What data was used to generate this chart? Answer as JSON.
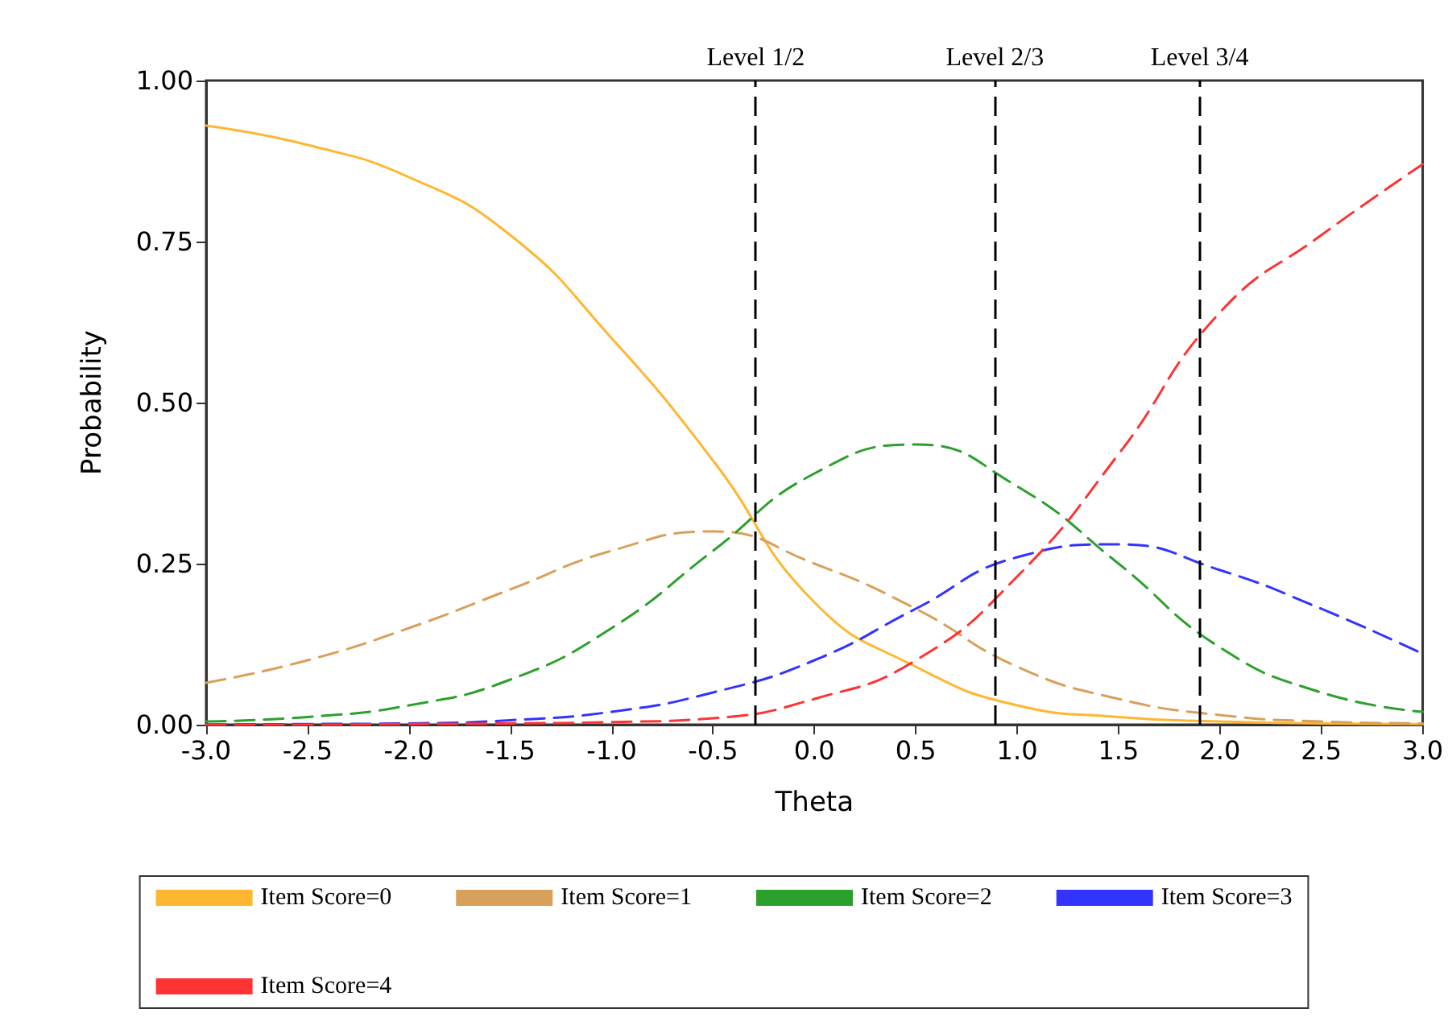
{
  "chart_data": {
    "type": "line",
    "xlabel": "Theta",
    "ylabel": "Probability",
    "xlim": [
      -3,
      3
    ],
    "ylim": [
      0,
      1
    ],
    "xticks": [
      {
        "value": -3,
        "label": "-3.0"
      },
      {
        "value": -2.5,
        "label": "-2.5"
      },
      {
        "value": -2,
        "label": "-2.0"
      },
      {
        "value": -1.5,
        "label": "-1.5"
      },
      {
        "value": -1,
        "label": "-1.0"
      },
      {
        "value": -0.5,
        "label": "-0.5"
      },
      {
        "value": 0,
        "label": "0.0"
      },
      {
        "value": 0.5,
        "label": "0.5"
      },
      {
        "value": 1,
        "label": "1.0"
      },
      {
        "value": 1.5,
        "label": "1.5"
      },
      {
        "value": 2,
        "label": "2.0"
      },
      {
        "value": 2.5,
        "label": "2.5"
      },
      {
        "value": 3,
        "label": "3.0"
      }
    ],
    "yticks": [
      {
        "value": 0,
        "label": "0.00"
      },
      {
        "value": 0.25,
        "label": "0.25"
      },
      {
        "value": 0.5,
        "label": "0.50"
      },
      {
        "value": 0.75,
        "label": "0.75"
      },
      {
        "value": 1,
        "label": "1.00"
      }
    ],
    "x": [
      -3,
      -2.5,
      -2,
      -1.5,
      -1,
      -0.5,
      0,
      0.5,
      1,
      1.5,
      2,
      2.5,
      3
    ],
    "series": [
      {
        "name": "Item Score=0",
        "color": "#ffb732",
        "line_style": "solid",
        "values": [
          0.93,
          0.9,
          0.85,
          0.76,
          0.6,
          0.41,
          0.19,
          0.09,
          0.03,
          0.012,
          0.005,
          0.002,
          0.001
        ]
      },
      {
        "name": "Item Score=1",
        "color": "#d9a05b",
        "line_style": "dashed",
        "values": [
          0.065,
          0.1,
          0.15,
          0.21,
          0.27,
          0.3,
          0.25,
          0.18,
          0.09,
          0.04,
          0.015,
          0.005,
          0.002
        ]
      },
      {
        "name": "Item Score=2",
        "color": "#2ca02c",
        "line_style": "dashed",
        "values": [
          0.005,
          0.012,
          0.03,
          0.07,
          0.15,
          0.27,
          0.39,
          0.435,
          0.37,
          0.25,
          0.12,
          0.05,
          0.02
        ]
      },
      {
        "name": "Item Score=3",
        "color": "#3333ff",
        "line_style": "dashed",
        "values": [
          0,
          0.001,
          0.002,
          0.007,
          0.02,
          0.05,
          0.1,
          0.18,
          0.26,
          0.28,
          0.24,
          0.18,
          0.11
        ]
      },
      {
        "name": "Item Score=4",
        "color": "#ff3333",
        "line_style": "dashed",
        "values": [
          0,
          0,
          0.001,
          0.002,
          0.004,
          0.01,
          0.04,
          0.1,
          0.23,
          0.42,
          0.64,
          0.76,
          0.87
        ]
      }
    ],
    "ref_lines": [
      {
        "axis": "x",
        "value": -0.29,
        "label": "Level 1/2",
        "color": "#000000",
        "line_style": "dashed"
      },
      {
        "axis": "x",
        "value": 0.89,
        "label": "Level 2/3",
        "color": "#000000",
        "line_style": "dashed"
      },
      {
        "axis": "x",
        "value": 1.9,
        "label": "Level 3/4",
        "color": "#000000",
        "line_style": "dashed"
      }
    ],
    "grid": false,
    "legend": "bottom",
    "marker": "none"
  }
}
